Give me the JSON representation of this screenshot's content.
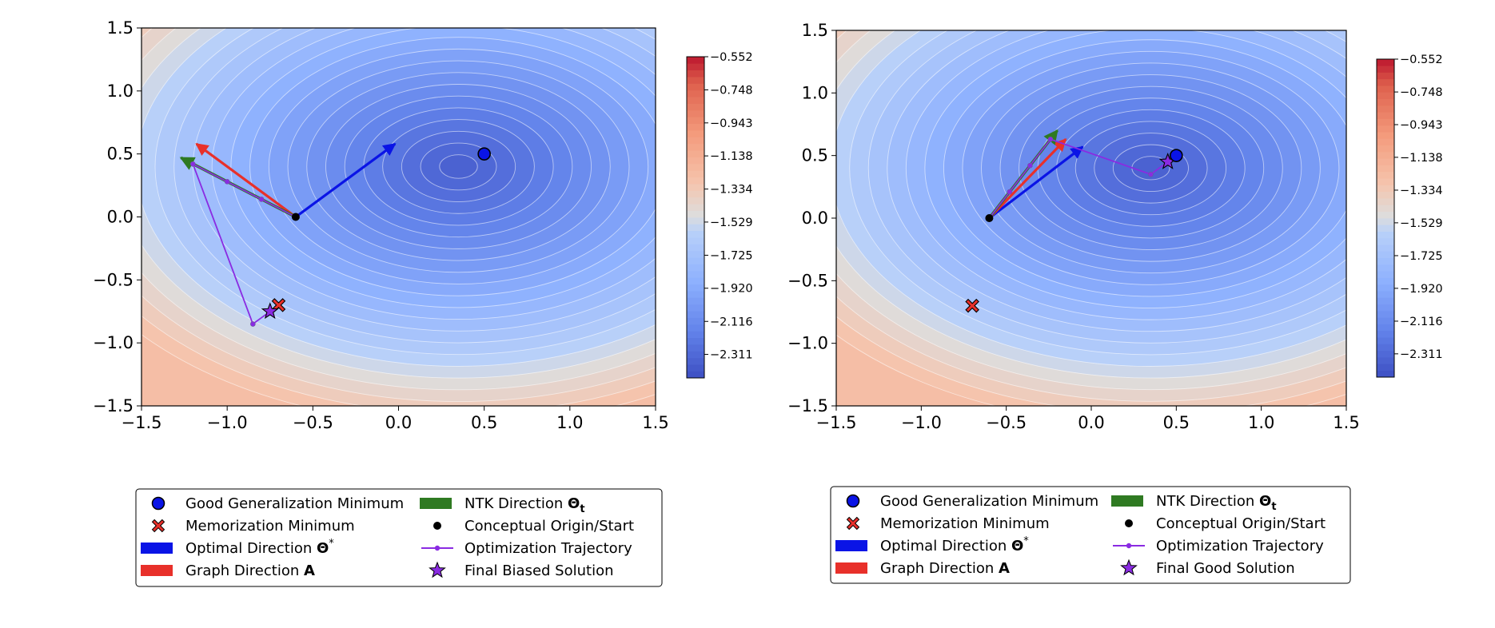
{
  "chart_data": [
    {
      "type": "contour",
      "panel": "left",
      "xlim": [
        -1.5,
        1.5
      ],
      "ylim": [
        -1.5,
        1.5
      ],
      "x_ticks": [
        -1.5,
        -1.0,
        -0.5,
        0.0,
        0.5,
        1.0,
        1.5
      ],
      "y_ticks": [
        -1.5,
        -1.0,
        -0.5,
        0.0,
        0.5,
        1.0,
        1.5
      ],
      "x_tick_labels": [
        "−1.5",
        "−1.0",
        "−0.5",
        "0.0",
        "0.5",
        "1.0",
        "1.5"
      ],
      "y_tick_labels": [
        "−1.5",
        "−1.0",
        "−0.5",
        "0.0",
        "0.5",
        "1.0",
        "1.5"
      ],
      "landscape_center": [
        0.35,
        0.4
      ],
      "colorbar": {
        "min": -2.45,
        "max": -0.552,
        "ticks": [
          -0.552,
          -0.748,
          -0.943,
          -1.138,
          -1.334,
          -1.529,
          -1.725,
          -1.92,
          -2.116,
          -2.311
        ],
        "tick_labels": [
          "−0.552",
          "−0.748",
          "−0.943",
          "−1.138",
          "−1.334",
          "−1.529",
          "−1.725",
          "−1.920",
          "−2.116",
          "−2.311"
        ],
        "colormap": "coolwarm"
      },
      "good_minimum": [
        0.5,
        0.5
      ],
      "memorization_minimum": [
        -0.7,
        -0.7
      ],
      "origin": [
        -0.6,
        0.0
      ],
      "optimal_direction": {
        "from": [
          -0.6,
          0.0
        ],
        "to": [
          -0.02,
          0.58
        ]
      },
      "graph_direction": {
        "from": [
          -0.6,
          0.0
        ],
        "to": [
          -1.18,
          0.58
        ]
      },
      "ntk_direction": {
        "from": [
          -0.6,
          0.0
        ],
        "to": [
          -1.27,
          0.47
        ]
      },
      "trajectory": [
        [
          -0.6,
          0.0
        ],
        [
          -0.8,
          0.14
        ],
        [
          -1.0,
          0.28
        ],
        [
          -1.2,
          0.42
        ],
        [
          -0.85,
          -0.85
        ],
        [
          -0.75,
          -0.75
        ]
      ],
      "final_solution": [
        -0.75,
        -0.75
      ],
      "legend": [
        {
          "label": "Good Generalization Minimum",
          "marker": "blue-circle"
        },
        {
          "label": "Memorization Minimum",
          "marker": "red-x"
        },
        {
          "label": "Optimal Direction ",
          "bold": "Θ",
          "sup": "*",
          "marker": "blue-patch"
        },
        {
          "label": "Graph Direction ",
          "bold": "A",
          "marker": "red-patch"
        },
        {
          "label": "NTK Direction ",
          "bold": "Θ",
          "sub": "t",
          "marker": "green-patch"
        },
        {
          "label": "Conceptual Origin/Start",
          "marker": "black-dot"
        },
        {
          "label": "Optimization Trajectory",
          "marker": "purple-line"
        },
        {
          "label": "Final Biased Solution",
          "marker": "purple-star"
        }
      ]
    },
    {
      "type": "contour",
      "panel": "right",
      "xlim": [
        -1.5,
        1.5
      ],
      "ylim": [
        -1.5,
        1.5
      ],
      "x_ticks": [
        -1.5,
        -1.0,
        -0.5,
        0.0,
        0.5,
        1.0,
        1.5
      ],
      "y_ticks": [
        -1.5,
        -1.0,
        -0.5,
        0.0,
        0.5,
        1.0,
        1.5
      ],
      "x_tick_labels": [
        "−1.5",
        "−1.0",
        "−0.5",
        "0.0",
        "0.5",
        "1.0",
        "1.5"
      ],
      "y_tick_labels": [
        "−1.5",
        "−1.0",
        "−0.5",
        "0.0",
        "0.5",
        "1.0",
        "1.5"
      ],
      "landscape_center": [
        0.35,
        0.4
      ],
      "colorbar": {
        "min": -2.45,
        "max": -0.552,
        "ticks": [
          -0.552,
          -0.748,
          -0.943,
          -1.138,
          -1.334,
          -1.529,
          -1.725,
          -1.92,
          -2.116,
          -2.311
        ],
        "tick_labels": [
          "−0.552",
          "−0.748",
          "−0.943",
          "−1.138",
          "−1.334",
          "−1.529",
          "−1.725",
          "−1.920",
          "−2.116",
          "−2.311"
        ],
        "colormap": "coolwarm"
      },
      "good_minimum": [
        0.5,
        0.5
      ],
      "memorization_minimum": [
        -0.7,
        -0.7
      ],
      "origin": [
        -0.6,
        0.0
      ],
      "optimal_direction": {
        "from": [
          -0.6,
          0.0
        ],
        "to": [
          -0.05,
          0.57
        ]
      },
      "graph_direction": {
        "from": [
          -0.6,
          0.0
        ],
        "to": [
          -0.15,
          0.63
        ]
      },
      "ntk_direction": {
        "from": [
          -0.6,
          0.0
        ],
        "to": [
          -0.2,
          0.7
        ]
      },
      "trajectory": [
        [
          -0.6,
          0.0
        ],
        [
          -0.48,
          0.21
        ],
        [
          -0.36,
          0.42
        ],
        [
          -0.24,
          0.63
        ],
        [
          0.35,
          0.35
        ],
        [
          0.45,
          0.45
        ]
      ],
      "final_solution": [
        0.45,
        0.45
      ],
      "legend": [
        {
          "label": "Good Generalization Minimum",
          "marker": "blue-circle"
        },
        {
          "label": "Memorization Minimum",
          "marker": "red-x"
        },
        {
          "label": "Optimal Direction ",
          "bold": "Θ",
          "sup": "*",
          "marker": "blue-patch"
        },
        {
          "label": "Graph Direction ",
          "bold": "A",
          "marker": "red-patch"
        },
        {
          "label": "NTK Direction ",
          "bold": "Θ",
          "sub": "t",
          "marker": "green-patch"
        },
        {
          "label": "Conceptual Origin/Start",
          "marker": "black-dot"
        },
        {
          "label": "Optimization Trajectory",
          "marker": "purple-line"
        },
        {
          "label": "Final Good Solution",
          "marker": "purple-star"
        }
      ]
    }
  ],
  "colors": {
    "optimal": "#0a14e6",
    "graph": "#e8302a",
    "ntk": "#2f7a22",
    "trajectory": "#8a2be2",
    "good_minimum": "#0a14e6",
    "memorization": "#e8302a",
    "origin": "#000000"
  }
}
